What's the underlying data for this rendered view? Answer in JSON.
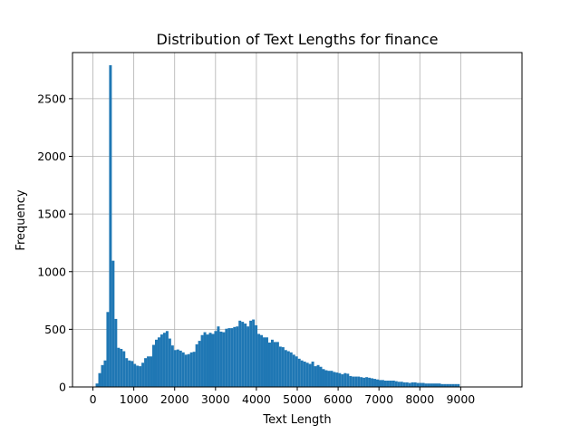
{
  "chart_data": {
    "type": "bar",
    "title": "Distribution of Text Lengths for finance",
    "xlabel": "Text Length",
    "ylabel": "Frequency",
    "xlim": [
      -500,
      10500
    ],
    "ylim": [
      0,
      2900
    ],
    "x_ticks": [
      0,
      1000,
      2000,
      3000,
      4000,
      5000,
      6000,
      7000,
      8000,
      9000
    ],
    "y_ticks": [
      0,
      500,
      1000,
      1500,
      2000,
      2500
    ],
    "grid": true,
    "bar_color": "#1f77b4",
    "bin_width": 66,
    "bin_start": 0,
    "values": [
      0,
      30,
      120,
      190,
      230,
      650,
      2790,
      1095,
      590,
      340,
      330,
      310,
      250,
      230,
      225,
      200,
      185,
      180,
      210,
      250,
      265,
      265,
      365,
      410,
      430,
      455,
      470,
      485,
      420,
      360,
      320,
      325,
      315,
      300,
      280,
      285,
      300,
      305,
      370,
      400,
      450,
      475,
      455,
      470,
      460,
      485,
      525,
      480,
      475,
      505,
      510,
      510,
      520,
      525,
      575,
      565,
      550,
      525,
      575,
      585,
      535,
      460,
      450,
      430,
      430,
      385,
      410,
      390,
      390,
      350,
      345,
      320,
      310,
      300,
      280,
      265,
      245,
      230,
      220,
      210,
      200,
      220,
      180,
      190,
      175,
      155,
      145,
      140,
      140,
      130,
      125,
      120,
      110,
      120,
      115,
      95,
      90,
      90,
      90,
      85,
      80,
      85,
      80,
      75,
      70,
      65,
      60,
      60,
      55,
      55,
      55,
      55,
      50,
      45,
      45,
      40,
      40,
      35,
      40,
      40,
      35,
      35,
      35,
      30,
      30,
      30,
      30,
      30,
      30,
      25,
      25,
      25,
      25,
      25,
      25,
      25
    ]
  }
}
